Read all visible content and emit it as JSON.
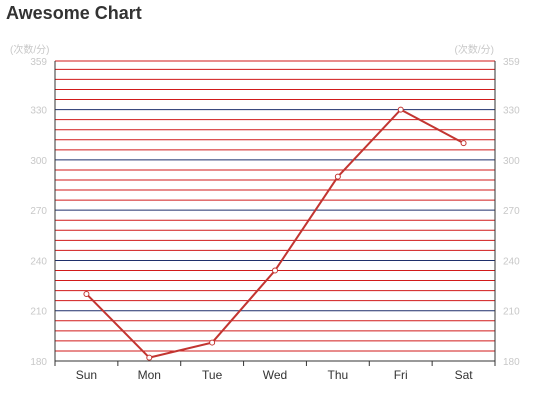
{
  "chart_data": {
    "type": "line",
    "title": "Awesome Chart",
    "unit_label_left": "(次数/分)",
    "unit_label_right": "(次数/分)",
    "categories": [
      "Sun",
      "Mon",
      "Tue",
      "Wed",
      "Thu",
      "Fri",
      "Sat"
    ],
    "series": [
      {
        "values": [
          220,
          182,
          191,
          234,
          290,
          330,
          310
        ]
      }
    ],
    "ylim": [
      180,
      359
    ],
    "yticks": [
      180,
      210,
      240,
      270,
      300,
      330,
      359
    ],
    "grid": true,
    "colors": {
      "line": "#c23531",
      "grid_major": "#1f2f6b",
      "grid_minor": "#d11a1a",
      "axis": "#333333",
      "tick_text": "#c8c8c8"
    }
  }
}
